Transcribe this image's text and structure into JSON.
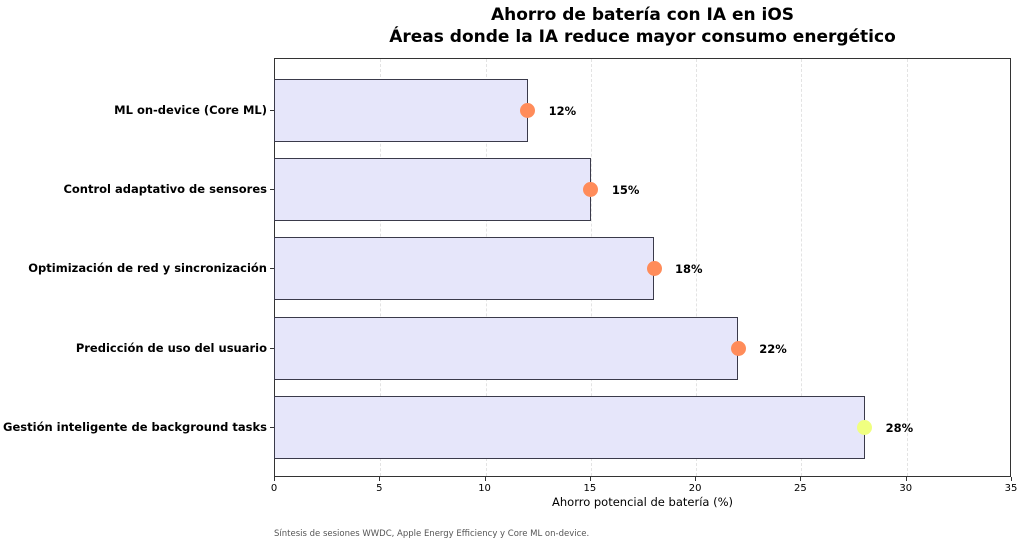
{
  "chart_data": {
    "type": "bar",
    "orientation": "horizontal",
    "title": "Ahorro de batería con IA en iOS",
    "subtitle": "Áreas donde la IA reduce mayor consumo energético",
    "xlabel": "Ahorro potencial de batería (%)",
    "ylabel": "",
    "xlim": [
      0,
      35
    ],
    "xticks": [
      0,
      5,
      10,
      15,
      20,
      25,
      30,
      35
    ],
    "grid": "vertical dashed",
    "categories": [
      "ML on-device (Core ML)",
      "Control adaptativo de sensores",
      "Optimización de red y sincronización",
      "Predicción de uso del usuario",
      "Gestión inteligente de background tasks"
    ],
    "values": [
      12,
      15,
      18,
      22,
      28
    ],
    "value_labels": [
      "12%",
      "15%",
      "18%",
      "22%",
      "28%"
    ],
    "marker_colors": [
      "#ff8c5a",
      "#ff8c5a",
      "#ff8c5a",
      "#ff8c5a",
      "#f0ff80"
    ],
    "bar_color": "#e6e6fa",
    "bar_edge_color": "#3a3a4a",
    "footnote": "Síntesis de sesiones WWDC, Apple Energy Efficiency y Core ML on-device."
  }
}
